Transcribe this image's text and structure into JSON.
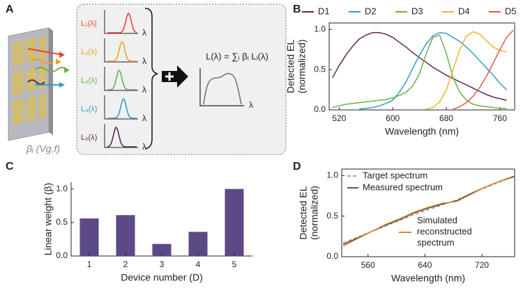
{
  "panels": {
    "a": "A",
    "b": "B",
    "c": "C",
    "d": "D"
  },
  "diagram": {
    "components": [
      {
        "label": "L₁(λ)",
        "color": "#e8452c"
      },
      {
        "label": "L₂(λ)",
        "color": "#f0a020"
      },
      {
        "label": "L₃(λ)",
        "color": "#6ab04c"
      },
      {
        "label": "L₄(λ)",
        "color": "#3a9ac9"
      },
      {
        "label": "L₅(λ)",
        "color": "#5e2750"
      }
    ],
    "axis_label": "λ",
    "formula": "L(λ) = ∑ᵢ βᵢ Lᵢ(λ)",
    "weight_label": "βᵢ (Vg,f)"
  },
  "chart_data": [
    {
      "type": "line",
      "xlabel": "Wavelength (nm)",
      "ylabel": [
        "Detected EL",
        "(normalized)"
      ],
      "x": [
        510,
        520,
        530,
        540,
        550,
        560,
        570,
        580,
        590,
        600,
        610,
        620,
        630,
        640,
        650,
        660,
        670,
        680,
        690,
        700,
        710,
        720,
        730,
        740,
        750,
        760,
        770,
        780
      ],
      "series": [
        {
          "name": "D1",
          "color": "#5e2750",
          "legend": "top",
          "values": [
            0.4,
            0.55,
            0.68,
            0.79,
            0.88,
            0.93,
            0.96,
            0.96,
            0.94,
            0.9,
            0.84,
            0.78,
            0.71,
            0.65,
            0.59,
            0.53,
            0.48,
            0.43,
            0.39,
            0.35,
            0.31,
            0.27,
            0.23,
            0.19,
            0.16,
            0.14,
            0.12,
            null
          ]
        },
        {
          "name": "D2",
          "color": "#3a9ac9",
          "legend": "top",
          "values": [
            null,
            null,
            null,
            null,
            0.01,
            0.02,
            0.03,
            0.05,
            0.08,
            0.12,
            0.22,
            0.35,
            0.52,
            0.68,
            0.82,
            0.92,
            0.96,
            0.95,
            0.9,
            0.85,
            0.78,
            0.7,
            0.61,
            0.52,
            0.43,
            0.33,
            0.25,
            null
          ]
        },
        {
          "name": "D3",
          "color": "#6ab04c",
          "legend": "top",
          "values": [
            0.03,
            0.05,
            0.07,
            0.08,
            0.09,
            0.1,
            0.11,
            0.12,
            0.13,
            0.15,
            0.18,
            0.22,
            0.3,
            0.45,
            0.7,
            0.9,
            0.93,
            0.7,
            0.4,
            0.22,
            0.12,
            0.07,
            0.05,
            0.04,
            0.03,
            0.02,
            0.02,
            null
          ]
        },
        {
          "name": "D4",
          "color": "#f0b429",
          "legend": "top",
          "values": [
            null,
            null,
            null,
            null,
            null,
            null,
            null,
            null,
            null,
            null,
            null,
            null,
            null,
            null,
            0.01,
            0.03,
            0.1,
            0.25,
            0.5,
            0.75,
            0.92,
            0.97,
            0.94,
            0.86,
            0.78,
            0.74,
            0.72,
            null
          ]
        },
        {
          "name": "D5",
          "color": "#e05a3f",
          "legend": "top",
          "values": [
            null,
            null,
            null,
            null,
            null,
            null,
            null,
            null,
            null,
            null,
            null,
            null,
            null,
            null,
            null,
            null,
            null,
            null,
            0.01,
            0.04,
            0.09,
            0.17,
            0.28,
            0.42,
            0.58,
            0.75,
            0.9,
            0.99
          ]
        }
      ],
      "xlim": [
        505,
        782
      ],
      "xticks": [
        520,
        600,
        680,
        760
      ],
      "ylim": [
        0,
        1.08
      ],
      "yticks": [
        {
          "value": 0,
          "label": "0.0"
        },
        0.5,
        {
          "value": 1,
          "label": "1.0"
        }
      ],
      "box": true
    },
    {
      "type": "bar",
      "xlabel": "Device number (D)",
      "ylabel": "Linear weight (β)",
      "categories": [
        "1",
        "2",
        "3",
        "4",
        "5"
      ],
      "values": [
        0.56,
        0.61,
        0.18,
        0.36,
        1.0
      ],
      "color": "#5b4a86",
      "ylim": [
        0,
        1.1
      ],
      "yticks": [
        {
          "value": 0,
          "label": "0.0"
        },
        0.5,
        {
          "value": 1,
          "label": "1.0"
        }
      ],
      "box": false
    },
    {
      "type": "line",
      "xlabel": "Wavelength (nm)",
      "ylabel": [
        "Detected EL",
        "(normalized)"
      ],
      "x": [
        525,
        545,
        565,
        585,
        605,
        625,
        645,
        665,
        685,
        705,
        725,
        745,
        765
      ],
      "series": [
        {
          "name": "Target spectrum",
          "color": "#9a9aa8",
          "dash": true,
          "legend": "upper left",
          "values": [
            0.17,
            0.24,
            0.31,
            0.38,
            0.45,
            0.52,
            0.58,
            0.64,
            0.7,
            0.78,
            0.85,
            0.92,
            0.99
          ]
        },
        {
          "name": "Measured spectrum",
          "color": "#444444",
          "dash": false,
          "legend": "upper left",
          "values": [
            0.15,
            0.23,
            0.31,
            0.39,
            0.46,
            0.54,
            0.6,
            0.65,
            0.69,
            0.78,
            0.86,
            0.93,
            0.99
          ]
        },
        {
          "name": "Simulated reconstructed spectrum",
          "color": "#e8892c",
          "dash": false,
          "legend": "lower right",
          "values": [
            0.13,
            0.22,
            0.31,
            0.4,
            0.47,
            0.55,
            0.61,
            0.66,
            0.68,
            0.77,
            0.86,
            0.93,
            0.98
          ]
        }
      ],
      "xlim": [
        523,
        766
      ],
      "xticks": [
        560,
        640,
        720
      ],
      "ylim": [
        0,
        1.08
      ],
      "yticks": [
        {
          "value": 0,
          "label": "0.0"
        },
        0.5,
        {
          "value": 1,
          "label": "1.0"
        }
      ],
      "box": true
    }
  ]
}
